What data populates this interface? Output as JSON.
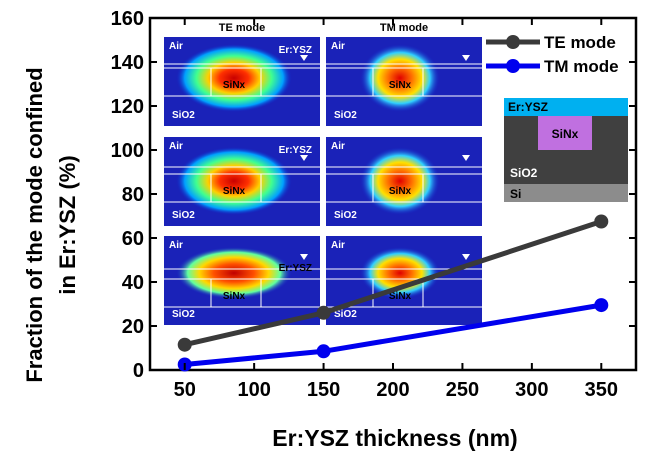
{
  "chart_data": {
    "type": "line",
    "xlabel": "Er:YSZ thickness (nm)",
    "ylabel_line1": "Fraction of the mode confined",
    "ylabel_line2": "in Er:YSZ (%)",
    "xlim": [
      25,
      375
    ],
    "ylim": [
      0,
      160
    ],
    "xticks": [
      50,
      100,
      150,
      200,
      250,
      300,
      350
    ],
    "yticks": [
      0,
      20,
      40,
      60,
      80,
      100,
      120,
      140,
      160
    ],
    "legend_position": "top-right",
    "series": [
      {
        "name": "TE mode",
        "color": "#3a3a3a",
        "x": [
          50,
          150,
          350
        ],
        "y": [
          11.5,
          26,
          67.5
        ]
      },
      {
        "name": "TM mode",
        "color": "#0000ee",
        "x": [
          50,
          150,
          350
        ],
        "y": [
          2.5,
          8.5,
          29.5
        ]
      }
    ],
    "insets": {
      "te_header": "TE mode",
      "tm_header": "TM mode",
      "panels": [
        {
          "air": "Air",
          "core": "SiNx",
          "substrate": "SiO2",
          "film": "Er:YSZ"
        },
        {
          "air": "Air",
          "core": "SiNx",
          "substrate": "SiO2",
          "film": ""
        },
        {
          "air": "Air",
          "core": "SiNx",
          "substrate": "SiO2",
          "film": "Er:YSZ"
        },
        {
          "air": "Air",
          "core": "SiNx",
          "substrate": "SiO2",
          "film": ""
        },
        {
          "air": "Air",
          "core": "SiNx",
          "substrate": "SiO2",
          "film": "Er:YSZ"
        },
        {
          "air": "Air",
          "core": "SiNx",
          "substrate": "SiO2",
          "film": ""
        }
      ]
    },
    "schematic": {
      "film": "Er:YSZ",
      "core": "SiNx",
      "cladding": "SiO2",
      "substrate": "Si"
    }
  }
}
